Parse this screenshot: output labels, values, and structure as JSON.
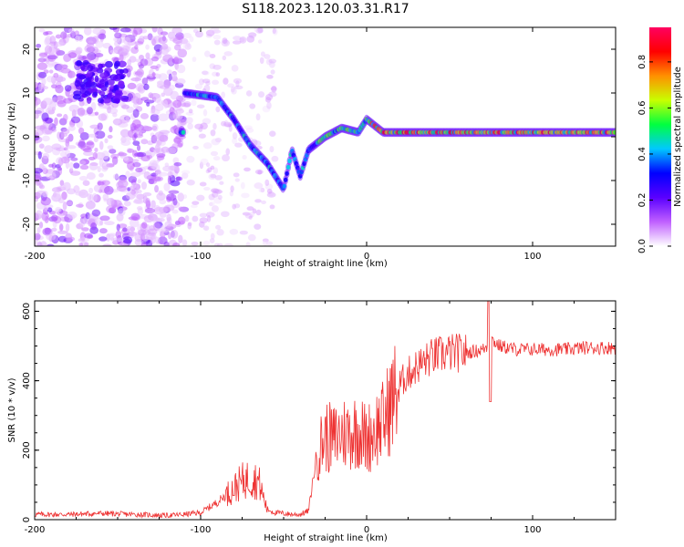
{
  "figure": {
    "title": "S118.2023.120.03.31.R17"
  },
  "chart_data": [
    {
      "type": "heatmap",
      "panel": "spectrogram",
      "xlabel": "Height of straight line (km)",
      "ylabel": "Frequency (Hz)",
      "xlim": [
        -200,
        150
      ],
      "ylim": [
        -25,
        25
      ],
      "xticks": [
        -200,
        -100,
        0,
        100
      ],
      "yticks": [
        -20,
        -10,
        0,
        10,
        20
      ],
      "colorbar": {
        "label": "Normalized spectral amplitude",
        "range": [
          0,
          0.95
        ],
        "ticks": [
          0.0,
          0.2,
          0.4,
          0.6,
          0.8
        ],
        "tick_labels": [
          "0.0",
          "0.2",
          "0.4",
          "0.6",
          "0.8"
        ],
        "colormap": [
          "#ffffff",
          "#c060ff",
          "#5a00ff",
          "#0000ff",
          "#00c8ff",
          "#00ff40",
          "#c8ff00",
          "#ff9000",
          "#ff0000",
          "#ff0060"
        ]
      },
      "ridge": {
        "description_points": [
          {
            "x": -110,
            "y": 10
          },
          {
            "x": -90,
            "y": 9
          },
          {
            "x": -80,
            "y": 4
          },
          {
            "x": -70,
            "y": -2
          },
          {
            "x": -60,
            "y": -6
          },
          {
            "x": -50,
            "y": -12
          },
          {
            "x": -45,
            "y": -3
          },
          {
            "x": -40,
            "y": -9
          },
          {
            "x": -35,
            "y": -3
          },
          {
            "x": -25,
            "y": 0
          },
          {
            "x": -15,
            "y": 2
          },
          {
            "x": -5,
            "y": 1
          },
          {
            "x": 0,
            "y": 4
          },
          {
            "x": 10,
            "y": 1
          },
          {
            "x": 50,
            "y": 1
          },
          {
            "x": 100,
            "y": 1
          },
          {
            "x": 150,
            "y": 1
          }
        ]
      }
    },
    {
      "type": "line",
      "panel": "snr",
      "xlabel": "Height of straight line (km)",
      "ylabel": "SNR (10 * v/v)",
      "xlim": [
        -200,
        150
      ],
      "ylim": [
        0,
        630
      ],
      "xticks": [
        -200,
        -100,
        0,
        100
      ],
      "yticks": [
        0,
        200,
        400,
        600
      ],
      "line_color": "#ee3333",
      "series": [
        {
          "x": [
            -200,
            -180,
            -160,
            -140,
            -120,
            -110,
            -100,
            -90,
            -80,
            -75,
            -70,
            -65,
            -60,
            -55,
            -50,
            -45,
            -40,
            -35,
            -30,
            -25,
            -20,
            -15,
            -10,
            -5,
            0,
            5,
            10,
            15,
            20,
            25,
            30,
            40,
            50,
            60,
            70,
            73,
            75,
            80,
            90,
            100,
            110,
            120,
            130,
            140,
            150
          ],
          "y": [
            15,
            15,
            18,
            15,
            12,
            15,
            20,
            50,
            90,
            110,
            120,
            110,
            30,
            20,
            18,
            15,
            15,
            25,
            190,
            240,
            230,
            250,
            250,
            260,
            230,
            260,
            280,
            340,
            390,
            420,
            440,
            470,
            480,
            480,
            490,
            500,
            520,
            500,
            490,
            490,
            490,
            490,
            495,
            495,
            495
          ]
        }
      ]
    }
  ]
}
